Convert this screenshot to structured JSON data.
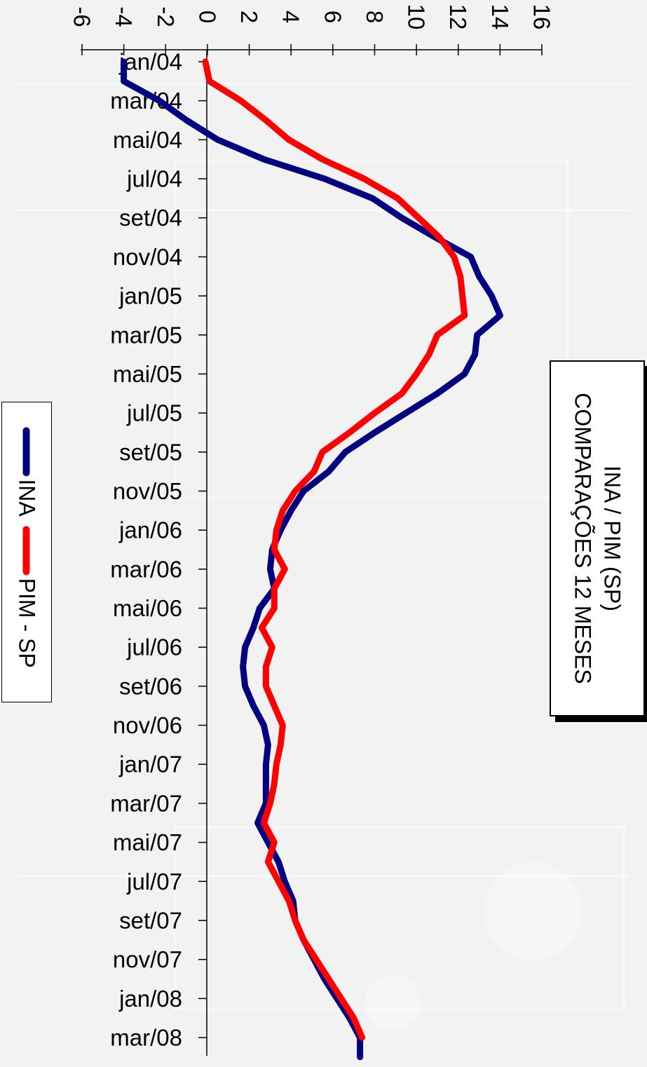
{
  "chart_data": {
    "type": "line",
    "orientation": "rotated-90-clockwise",
    "title_lines": [
      "INA / PIM (SP)",
      "COMPARAÇÕES 12 MESES"
    ],
    "x_ticks": [
      "jan/04",
      "mar/04",
      "mai/04",
      "jul/04",
      "set/04",
      "nov/04",
      "jan/05",
      "mar/05",
      "mai/05",
      "jul/05",
      "set/05",
      "nov/05",
      "jan/06",
      "mar/06",
      "mai/06",
      "jul/06",
      "set/06",
      "nov/06",
      "jan/07",
      "mar/07",
      "mai/07",
      "jul/07",
      "set/07",
      "nov/07",
      "jan/08",
      "mar/08"
    ],
    "y_ticks": [
      "-6",
      "-4",
      "-2",
      "0",
      "2",
      "4",
      "6",
      "8",
      "10",
      "12",
      "14",
      "16"
    ],
    "ylim": [
      -6,
      16
    ],
    "legend_placement": "left",
    "series": [
      {
        "name": "INA",
        "color": "#000080",
        "values": [
          -4.0,
          -4.0,
          -2.3,
          -1.0,
          0.5,
          2.7,
          5.6,
          7.9,
          9.3,
          10.9,
          12.6,
          13.0,
          13.6,
          14.0,
          12.9,
          12.8,
          12.3,
          11.0,
          9.5,
          8.0,
          6.6,
          5.8,
          4.6,
          4.0,
          3.5,
          3.1,
          3.0,
          3.2,
          2.5,
          2.2,
          1.8,
          1.7,
          1.8,
          2.2,
          2.7,
          2.9,
          2.8,
          2.8,
          2.8,
          2.4,
          2.9,
          3.4,
          3.7,
          4.1,
          4.2,
          4.6,
          5.1,
          5.6,
          6.2,
          6.8,
          7.3,
          7.3
        ]
      },
      {
        "name": "PIM - SP",
        "color": "#ff0000",
        "values": [
          -0.1,
          0.1,
          1.6,
          2.8,
          3.9,
          5.5,
          7.5,
          9.1,
          10.1,
          11.1,
          11.8,
          12.1,
          12.2,
          12.3,
          11.0,
          10.6,
          10.0,
          9.3,
          8.0,
          6.8,
          5.5,
          5.1,
          4.2,
          3.6,
          3.3,
          3.2,
          3.7,
          3.2,
          3.2,
          2.6,
          3.1,
          2.8,
          2.8,
          3.2,
          3.6,
          3.5,
          3.3,
          3.2,
          3.0,
          2.7,
          3.2,
          2.9,
          3.4,
          3.9,
          4.2,
          4.6,
          5.2,
          5.8,
          6.4,
          7.0,
          7.4
        ]
      }
    ]
  }
}
